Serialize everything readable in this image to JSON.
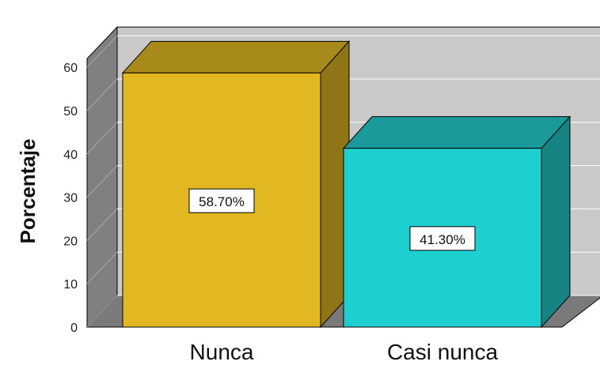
{
  "chart_data": {
    "type": "bar",
    "categories": [
      "Nunca",
      "Casi nunca"
    ],
    "values": [
      58.7,
      41.3
    ],
    "data_labels": [
      "58.70%",
      "41.30%"
    ],
    "ylabel": "Porcentaje",
    "ylim": [
      0,
      60
    ],
    "yticks": [
      "0",
      "10",
      "20",
      "30",
      "40",
      "50",
      "60"
    ],
    "grid": true,
    "three_d": true,
    "colors": {
      "bars": [
        "#e2b822",
        "#1ecfcf"
      ],
      "bar_sides": [
        "#8f7515",
        "#168383"
      ],
      "bar_tops": [
        "#a88a1b",
        "#1a9a9a"
      ],
      "wall": "#c9c9c9",
      "side_wall": "#808080",
      "floor": "#7a7a7a",
      "grid": "#ffffff"
    }
  }
}
